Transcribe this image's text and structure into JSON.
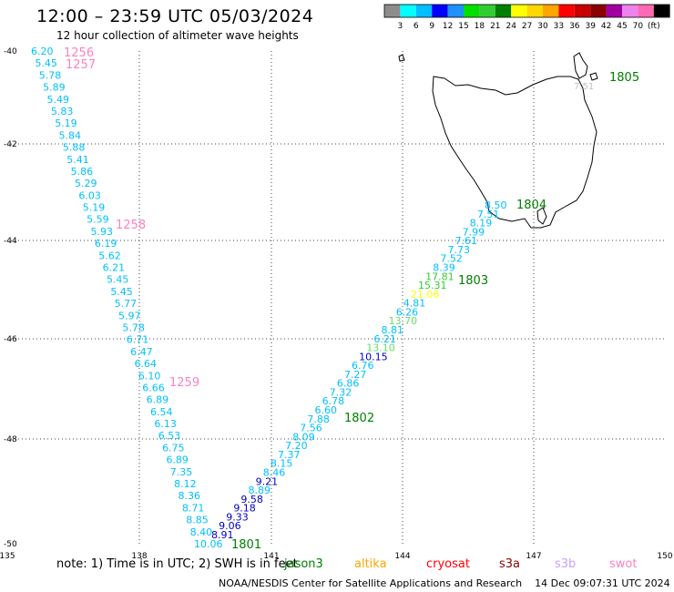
{
  "header": {
    "title": "12:00 – 23:59 UTC 05/03/2024",
    "subtitle": "12 hour collection of altimeter wave heights"
  },
  "legend": {
    "colors": [
      "#8c8c8c",
      "#00ffff",
      "#00bfff",
      "#0000ff",
      "#1e90ff",
      "#00e000",
      "#32cd32",
      "#008000",
      "#ffff00",
      "#ffd700",
      "#ffa500",
      "#ff0000",
      "#c80000",
      "#8b0000",
      "#a000a0",
      "#ee82ee",
      "#ff69b4",
      "#000000"
    ],
    "labels": [
      "3",
      "6",
      "9",
      "12",
      "15",
      "18",
      "21",
      "24",
      "27",
      "30",
      "33",
      "36",
      "39",
      "42",
      "45",
      "70",
      "(ft)"
    ]
  },
  "axes": {
    "lon_ticks": [
      "135",
      "138",
      "141",
      "144",
      "147",
      "150"
    ],
    "lat_ticks": [
      "-40",
      "-42",
      "-44",
      "-46",
      "-48",
      "-50"
    ]
  },
  "orbit_labels": {
    "o1256": "1256",
    "o1257": "1257",
    "o1258": "1258",
    "o1259": "1259",
    "o1801": "1801",
    "o1802": "1802",
    "o1803": "1803",
    "o1804": "1804",
    "o1805": "1805",
    "color_swot": "#ff80c0",
    "color_jason": "#008000"
  },
  "track_west": {
    "color": "#00c0ff",
    "values": [
      "6.20",
      "5.45",
      "5.78",
      "5.89",
      "5.49",
      "5.83",
      "5.19",
      "5.84",
      "5.88",
      "5.41",
      "5.86",
      "5.29",
      "6.03",
      "5.19",
      "5.59",
      "5.93",
      "6.19",
      "5.62",
      "6.21",
      "5.45",
      "5.45",
      "5.77",
      "5.97",
      "5.78",
      "6.71",
      "6.47",
      "6.64",
      "6.10",
      "6.66",
      "6.89",
      "6.54",
      "6.13",
      "6.53",
      "6.75",
      "6.89",
      "7.35",
      "8.12",
      "8.36",
      "8.71",
      "8.85",
      "8.40",
      "10.06"
    ]
  },
  "track_east": {
    "values": [
      "8.91",
      "9.06",
      "9.33",
      "9.18",
      "9.58",
      "8.89",
      "9.21",
      "8.46",
      "8.15",
      "7.37",
      "7.20",
      "8.09",
      "7.56",
      "7.88",
      "6.60",
      "6.78",
      "7.32",
      "6.86",
      "7.27",
      "6.76",
      "10.15",
      "13.10",
      "6.21",
      "8.81",
      "13.70",
      "6.26",
      "4.81",
      "21.06",
      "15.31",
      "17.81",
      "8.39",
      "7.52",
      "7.73",
      "7.61",
      "7.99",
      "8.19",
      "7.51",
      "8.50"
    ],
    "colors": [
      "#0000c0",
      "#0000c0",
      "#0000c0",
      "#0000c0",
      "#0000c0",
      "#00c0ff",
      "#0000c0",
      "#00c0ff",
      "#00c0ff",
      "#00c0ff",
      "#00c0ff",
      "#00c0ff",
      "#00c0ff",
      "#00c0ff",
      "#00c0ff",
      "#00c0ff",
      "#00c0ff",
      "#00c0ff",
      "#00c0ff",
      "#00c0ff",
      "#0000c0",
      "#66dd66",
      "#00c0ff",
      "#00c0ff",
      "#66dd66",
      "#00c0ff",
      "#00c0ff",
      "#ffff00",
      "#32cd32",
      "#32cd32",
      "#00c0ff",
      "#00c0ff",
      "#00c0ff",
      "#00c0ff",
      "#00c0ff",
      "#00c0ff",
      "#00c0ff",
      "#00c0ff"
    ]
  },
  "small_label": "7.51",
  "footer": {
    "note": "note: 1) Time is in UTC; 2) SWH is in feet",
    "satellites": [
      {
        "name": "jason3",
        "color": "#008000"
      },
      {
        "name": "altika",
        "color": "#ffa500"
      },
      {
        "name": "cryosat",
        "color": "#ff0000"
      },
      {
        "name": "s3a",
        "color": "#8b0000"
      },
      {
        "name": "s3b",
        "color": "#c8a0ff"
      },
      {
        "name": "swot",
        "color": "#ff80c0"
      }
    ],
    "credit": "NOAA/NESDIS Center for Satellite Applications and Research",
    "timestamp": "14 Dec 09:07:31 UTC 2024"
  }
}
